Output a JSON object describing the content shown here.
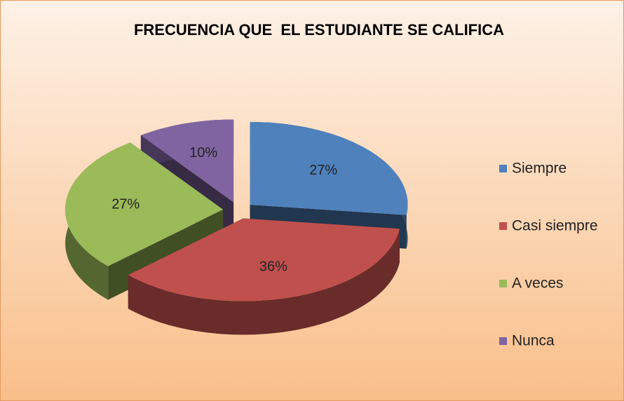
{
  "chart_data": {
    "type": "pie",
    "title": "FRECUENCIA QUE  EL ESTUDIANTE SE CALIFICA",
    "categories": [
      "Siempre",
      "Casi siempre",
      "A veces",
      "Nunca"
    ],
    "values": [
      27,
      36,
      27,
      10
    ],
    "value_labels": [
      "27%",
      "36%",
      "27%",
      "10%"
    ],
    "colors": [
      "#4f81bd",
      "#c0504d",
      "#9bbb59",
      "#8064a2"
    ],
    "legend": "right"
  }
}
